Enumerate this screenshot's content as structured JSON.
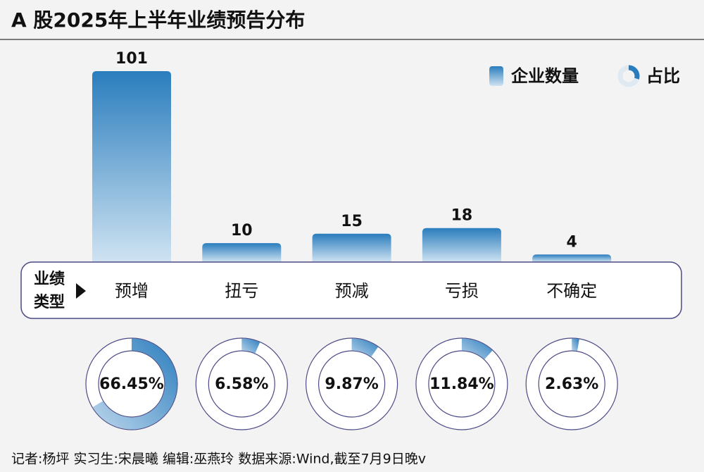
{
  "chart_data": {
    "type": "bar",
    "title": "A 股2025年上半年业绩预告分布",
    "categories": [
      "预增",
      "扭亏",
      "预减",
      "亏损",
      "不确定"
    ],
    "category_axis_label": [
      "业绩",
      "类型"
    ],
    "series": [
      {
        "name": "企业数量",
        "color": "#2a7dbd",
        "values": [
          101,
          10,
          15,
          18,
          4
        ]
      },
      {
        "name": "占比",
        "type": "donut",
        "color": "#2a7dbd",
        "values": [
          66.45,
          6.58,
          9.87,
          11.84,
          2.63
        ],
        "value_labels": [
          "66.45%",
          "6.58%",
          "9.87%",
          "11.84%",
          "2.63%"
        ]
      }
    ],
    "source": "记者:杨坪  实习生:宋晨曦  编辑:巫燕玲  数据来源:Wind,截至7月9日晚v"
  }
}
